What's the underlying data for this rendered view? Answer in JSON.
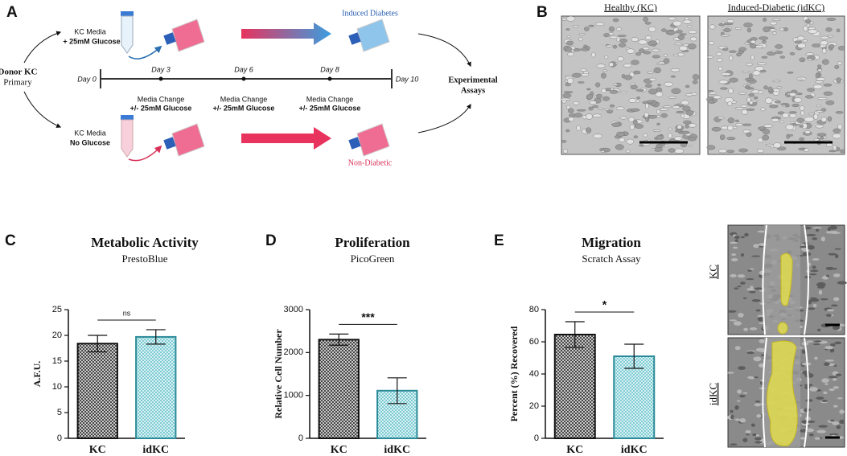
{
  "panels": [
    "A",
    "B",
    "C",
    "D",
    "E"
  ],
  "schematic": {
    "donor": "Donor KC",
    "donor_type": "Primary",
    "top_media": "KC Media",
    "top_condition": "+ 25mM Glucose",
    "bottom_media": "KC Media",
    "bottom_condition": "No Glucose",
    "days": [
      "Day 0",
      "Day 3",
      "Day 6",
      "Day 8",
      "Day 10"
    ],
    "changes": [
      {
        "line1": "Media Change",
        "line2": "+/- 25mM Glucose"
      },
      {
        "line1": "Media Change",
        "line2": "+/- 25mM Glucose"
      },
      {
        "line1": "Media Change",
        "line2": "+/- 25mM Glucose"
      }
    ],
    "top_outcome": "Induced Diabetes",
    "bottom_outcome": "Non-Diabetic",
    "assays_line1": "Experimental",
    "assays_line2": "Assays"
  },
  "micrographs": [
    "Healthy (KC)",
    "Induced-Diabetic (idKC)"
  ],
  "scratch_images": [
    "KC",
    "idKC"
  ],
  "chart_data": [
    {
      "type": "bar",
      "title": "Metabolic Activity",
      "subtitle": "PrestoBlue",
      "ylabel": "A.F.U.",
      "categories": [
        "KC",
        "idKC"
      ],
      "values": [
        18.4,
        19.7
      ],
      "errors": [
        1.6,
        1.4
      ],
      "colors": [
        "#2e2e2e",
        "#6cc6cf"
      ],
      "edgecolors": [
        "#111111",
        "#2b8a98"
      ],
      "ylim": [
        0,
        25
      ],
      "yticks": [
        0,
        5,
        10,
        15,
        20,
        25
      ],
      "annotation": "ns"
    },
    {
      "type": "bar",
      "title": "Proliferation",
      "subtitle": "PicoGreen",
      "ylabel": "Relative Cell Number",
      "categories": [
        "KC",
        "idKC"
      ],
      "values": [
        2300,
        1110
      ],
      "errors": [
        130,
        300
      ],
      "colors": [
        "#2e2e2e",
        "#6cc6cf"
      ],
      "edgecolors": [
        "#111111",
        "#2b8a98"
      ],
      "ylim": [
        0,
        3000
      ],
      "yticks": [
        0,
        1000,
        2000,
        3000
      ],
      "annotation": "***"
    },
    {
      "type": "bar",
      "title": "Migration",
      "subtitle": "Scratch Assay",
      "ylabel": "Percent (%) Recovered",
      "categories": [
        "KC",
        "idKC"
      ],
      "values": [
        64.5,
        51
      ],
      "errors": [
        8,
        7.5
      ],
      "colors": [
        "#2e2e2e",
        "#6cc6cf"
      ],
      "edgecolors": [
        "#111111",
        "#2b8a98"
      ],
      "ylim": [
        0,
        80
      ],
      "yticks": [
        0,
        20,
        40,
        60,
        80
      ],
      "annotation": "*"
    }
  ]
}
